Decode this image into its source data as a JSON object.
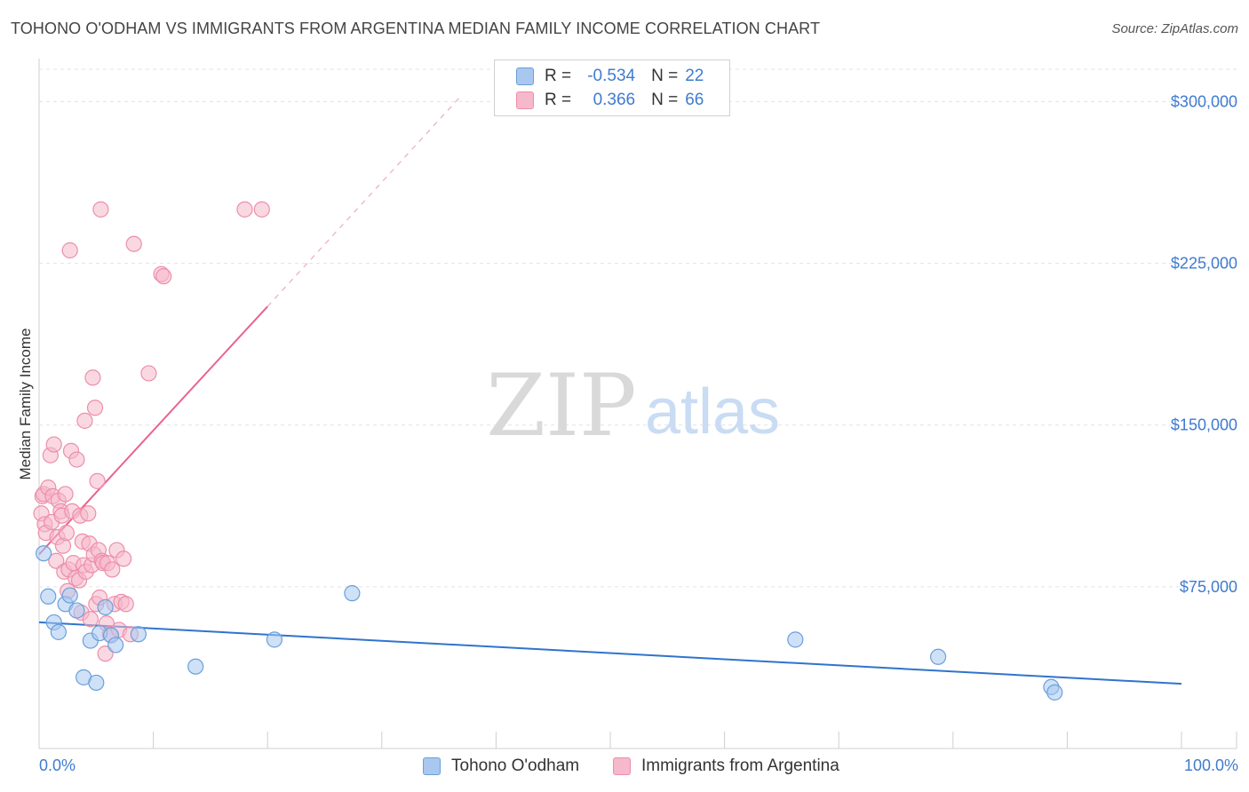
{
  "title": "TOHONO O'ODHAM VS IMMIGRANTS FROM ARGENTINA MEDIAN FAMILY INCOME CORRELATION CHART",
  "source": "Source: ZipAtlas.com",
  "watermark": {
    "zip": "ZIP",
    "atlas": "atlas"
  },
  "colors": {
    "blue_fill": "#a8c8f0",
    "blue_stroke": "#6a9fdc",
    "blue_line": "#2f74cc",
    "pink_fill": "#f6b8cb",
    "pink_stroke": "#ec8eab",
    "pink_line": "#e8638f",
    "axis_label": "#3f7bd0",
    "grid": "#e3e3e3"
  },
  "stats": {
    "rows": [
      {
        "r_label": "R =",
        "r_value": "-0.534",
        "n_label": "N =",
        "n_value": "22"
      },
      {
        "r_label": "R =",
        "r_value": "0.366",
        "n_label": "N =",
        "n_value": "66"
      }
    ]
  },
  "chart_data": {
    "type": "scatter",
    "title": "TOHONO O'ODHAM VS IMMIGRANTS FROM ARGENTINA MEDIAN FAMILY INCOME CORRELATION CHART",
    "xlabel": "",
    "ylabel": "Median Family Income",
    "xlim": [
      0,
      100
    ],
    "ylim": [
      0,
      315000
    ],
    "x_tick_labels": {
      "left": "0.0%",
      "right": "100.0%"
    },
    "y_ticks": [
      75000,
      150000,
      225000,
      300000
    ],
    "y_tick_labels": [
      "$75,000",
      "$150,000",
      "$225,000",
      "$300,000"
    ],
    "legend_position": "bottom-center",
    "series": [
      {
        "name": "Tohono O'odham",
        "color": "#a8c8f0",
        "points": [
          [
            0.4,
            90500
          ],
          [
            0.8,
            70500
          ],
          [
            1.3,
            58500
          ],
          [
            1.7,
            54000
          ],
          [
            2.3,
            67000
          ],
          [
            2.7,
            71000
          ],
          [
            3.3,
            64000
          ],
          [
            3.9,
            33000
          ],
          [
            4.5,
            50000
          ],
          [
            5.0,
            30500
          ],
          [
            5.3,
            53500
          ],
          [
            5.8,
            65500
          ],
          [
            6.3,
            52500
          ],
          [
            6.7,
            48000
          ],
          [
            8.7,
            53000
          ],
          [
            13.7,
            38000
          ],
          [
            20.6,
            50500
          ],
          [
            27.4,
            72000
          ],
          [
            66.2,
            50500
          ],
          [
            78.7,
            42500
          ],
          [
            88.6,
            28500
          ],
          [
            88.9,
            26000
          ]
        ],
        "trend": {
          "x0": 0,
          "y0": 58500,
          "x1": 100,
          "y1": 30000
        }
      },
      {
        "name": "Immigrants from Argentina",
        "color": "#f6b8cb",
        "points": [
          [
            0.2,
            109000
          ],
          [
            0.3,
            117000
          ],
          [
            0.4,
            118000
          ],
          [
            0.5,
            104000
          ],
          [
            0.6,
            100000
          ],
          [
            0.8,
            121000
          ],
          [
            1.0,
            136000
          ],
          [
            1.1,
            105000
          ],
          [
            1.2,
            117000
          ],
          [
            1.3,
            141000
          ],
          [
            1.5,
            87000
          ],
          [
            1.6,
            98000
          ],
          [
            1.7,
            115000
          ],
          [
            1.9,
            110000
          ],
          [
            2.0,
            108000
          ],
          [
            2.1,
            94000
          ],
          [
            2.2,
            82000
          ],
          [
            2.3,
            118000
          ],
          [
            2.4,
            100000
          ],
          [
            2.5,
            73000
          ],
          [
            2.6,
            83000
          ],
          [
            2.7,
            231000
          ],
          [
            2.8,
            138000
          ],
          [
            2.9,
            110000
          ],
          [
            3.0,
            86000
          ],
          [
            3.2,
            79000
          ],
          [
            3.3,
            134000
          ],
          [
            3.5,
            78000
          ],
          [
            3.6,
            108000
          ],
          [
            3.7,
            63000
          ],
          [
            3.8,
            96000
          ],
          [
            3.9,
            85000
          ],
          [
            4.0,
            152000
          ],
          [
            4.1,
            82000
          ],
          [
            4.3,
            109000
          ],
          [
            4.4,
            95000
          ],
          [
            4.5,
            60000
          ],
          [
            4.6,
            85000
          ],
          [
            4.7,
            172000
          ],
          [
            4.8,
            90000
          ],
          [
            4.9,
            158000
          ],
          [
            5.0,
            67000
          ],
          [
            5.1,
            124000
          ],
          [
            5.2,
            92000
          ],
          [
            5.3,
            70000
          ],
          [
            5.4,
            250000
          ],
          [
            5.5,
            87000
          ],
          [
            5.6,
            86000
          ],
          [
            5.8,
            44000
          ],
          [
            5.9,
            58000
          ],
          [
            6.0,
            86000
          ],
          [
            6.2,
            53000
          ],
          [
            6.4,
            83000
          ],
          [
            6.6,
            67000
          ],
          [
            6.8,
            92000
          ],
          [
            7.0,
            55000
          ],
          [
            7.2,
            68000
          ],
          [
            7.4,
            88000
          ],
          [
            7.6,
            67000
          ],
          [
            8.0,
            53000
          ],
          [
            8.3,
            234000
          ],
          [
            9.6,
            174000
          ],
          [
            10.7,
            220000
          ],
          [
            10.9,
            219000
          ],
          [
            18.0,
            250000
          ],
          [
            19.5,
            250000
          ]
        ],
        "trend": {
          "x0": 0,
          "y0": 90000,
          "x1": 20,
          "y1": 205000,
          "dash_to_x": 37,
          "dash_to_y": 303000
        }
      }
    ]
  }
}
